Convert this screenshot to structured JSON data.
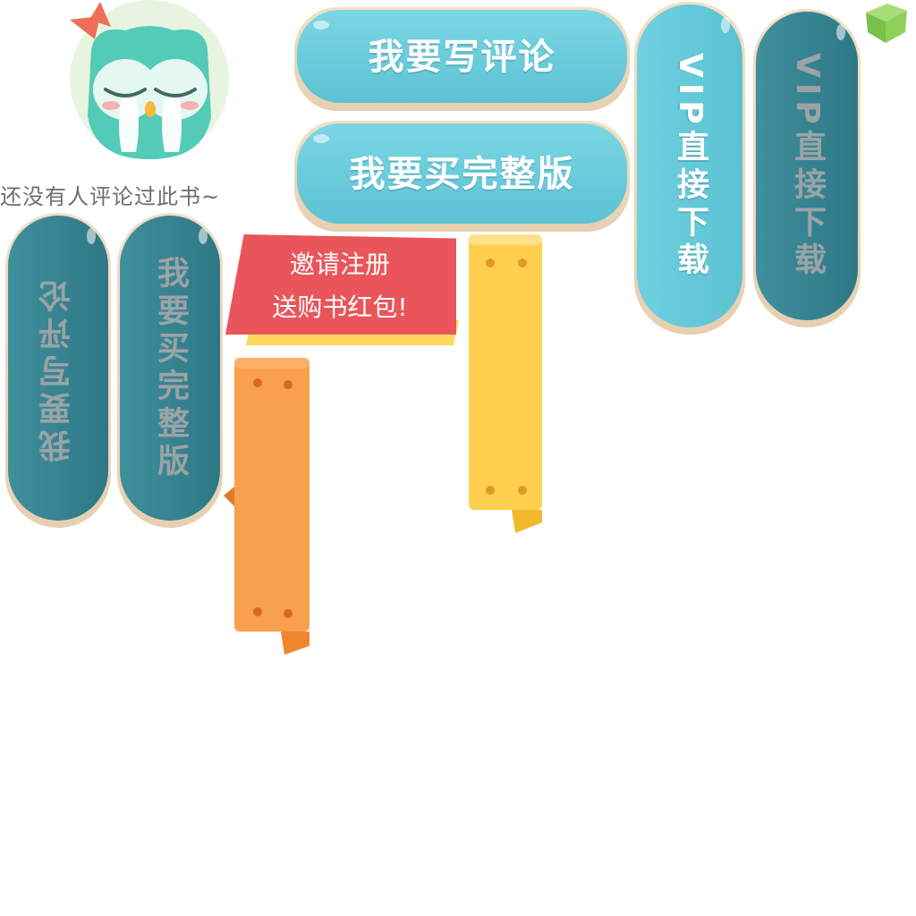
{
  "empty_comments": {
    "text": "还没有人评论过此书~"
  },
  "buttons": {
    "write_review": "我要写评论",
    "buy_full": "我要买完整版",
    "vip_download": "VIP直接下载",
    "vip_download_disabled": "VIP直接下载",
    "write_review_disabled": "我要写评论",
    "buy_full_disabled": "我要买完整版"
  },
  "promo": {
    "line1": "邀请注册",
    "line2": "送购书红包!"
  },
  "colors": {
    "accent_teal": "#6fd0e0",
    "disabled_teal": "#3f8f9c",
    "promo_red": "#e9555a",
    "promo_yellow": "#ffd75e",
    "ribbon_orange": "#f9a04e",
    "ribbon_yellow": "#ffcf4d"
  },
  "icons": {
    "avatar": "crying-owl-icon",
    "cube": "green-cube-icon",
    "ribbon_orange": "orange-ribbon-icon",
    "ribbon_yellow": "yellow-ribbon-icon"
  }
}
